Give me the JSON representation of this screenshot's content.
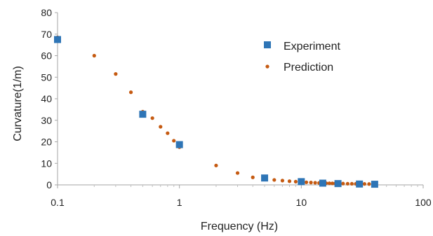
{
  "chart_data": {
    "type": "scatter",
    "title": "",
    "xlabel": "Frequency (Hz)",
    "ylabel": "Curvature(1/m)",
    "xscale": "log",
    "xlim": [
      0.1,
      100
    ],
    "ylim": [
      0,
      80
    ],
    "xticks": [
      0.1,
      1,
      10,
      100
    ],
    "xtick_labels": [
      "0.1",
      "1",
      "10",
      "100"
    ],
    "yticks": [
      0,
      10,
      20,
      30,
      40,
      50,
      60,
      70,
      80
    ],
    "ytick_labels": [
      "0",
      "10",
      "20",
      "30",
      "40",
      "50",
      "60",
      "70",
      "80"
    ],
    "grid": false,
    "legend_position": "top-right",
    "series": [
      {
        "name": "Experiment",
        "marker": "square",
        "color": "#2e75b6",
        "x": [
          0.1,
          0.5,
          1,
          5,
          10,
          15,
          20,
          30,
          40
        ],
        "y": [
          67.5,
          32.8,
          18.7,
          3.2,
          1.5,
          0.8,
          0.6,
          0.4,
          0.3
        ]
      },
      {
        "name": "Prediction",
        "marker": "circle",
        "color": "#c55a11",
        "x": [
          0.1,
          0.2,
          0.3,
          0.4,
          0.5,
          0.6,
          0.7,
          0.8,
          0.9,
          1,
          2,
          3,
          4,
          5,
          6,
          7,
          8,
          9,
          10,
          11,
          12,
          13,
          14,
          15,
          16,
          17,
          18,
          19,
          20,
          22,
          24,
          26,
          28,
          30,
          33,
          36,
          40
        ],
        "y": [
          68.5,
          60,
          51.5,
          43,
          34,
          31,
          27,
          24,
          20.5,
          17.5,
          9,
          5.5,
          3.5,
          2.8,
          2.3,
          2,
          1.7,
          1.5,
          1.3,
          1.2,
          1.1,
          1.0,
          0.9,
          0.85,
          0.8,
          0.75,
          0.7,
          0.68,
          0.65,
          0.6,
          0.55,
          0.52,
          0.5,
          0.47,
          0.44,
          0.41,
          0.38
        ]
      }
    ]
  }
}
